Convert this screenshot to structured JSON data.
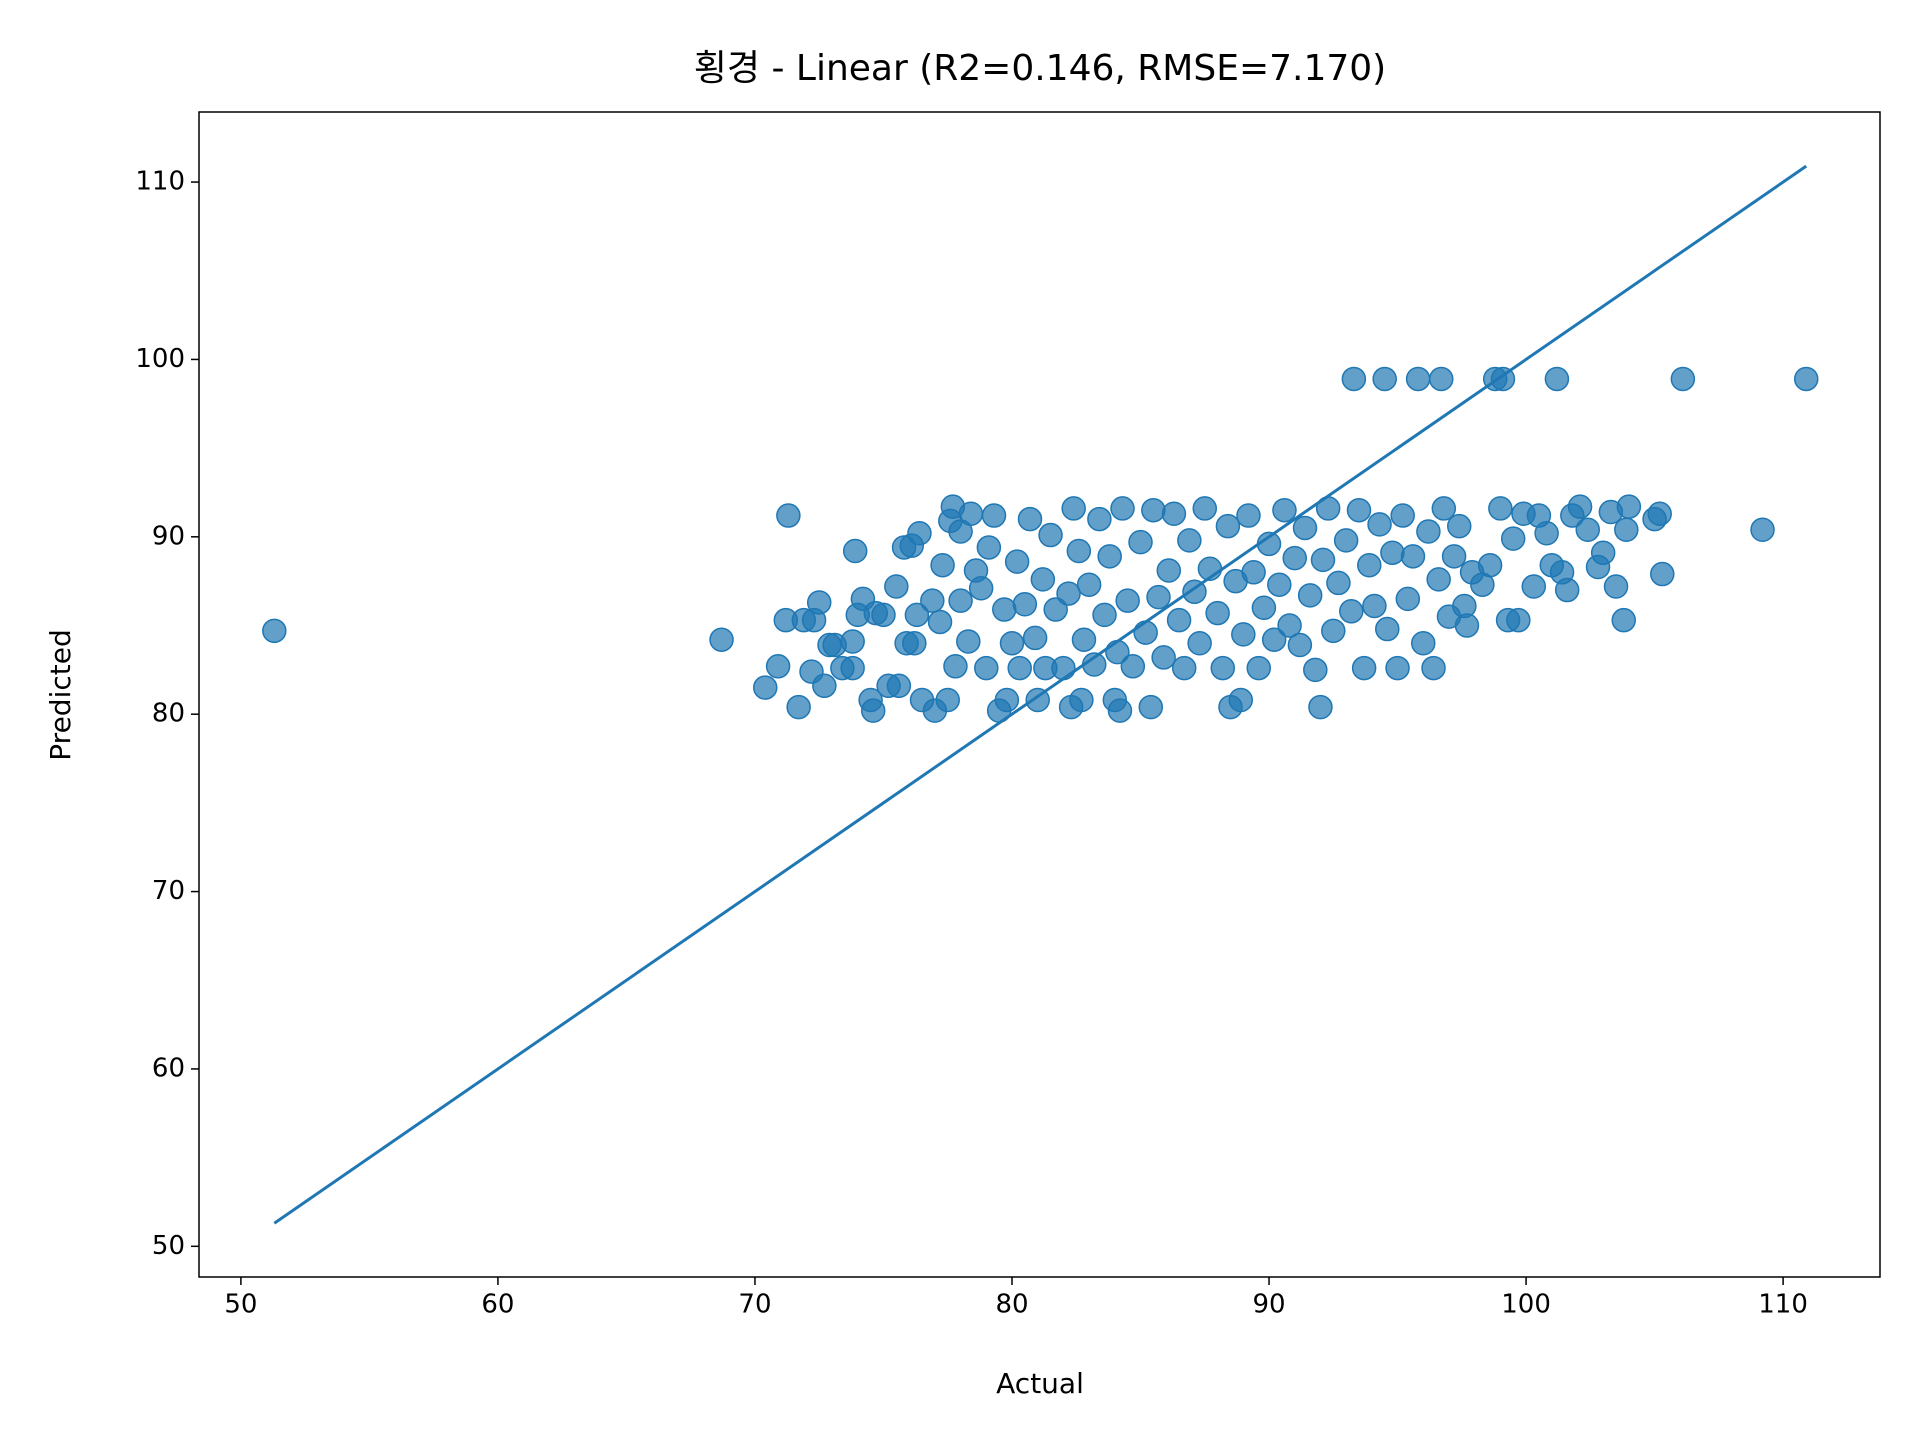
{
  "chart_data": {
    "type": "scatter",
    "title": "횡경 - Linear (R2=0.146, RMSE=7.170)",
    "xlabel": "Actual",
    "ylabel": "Predicted",
    "color": "#1f77b4",
    "x": [
      51.3,
      68.7,
      70.4,
      70.9,
      71.2,
      71.3,
      71.7,
      71.9,
      72.2,
      72.3,
      72.5,
      72.7,
      72.9,
      73.1,
      73.4,
      73.8,
      73.8,
      73.9,
      74.0,
      74.2,
      74.5,
      74.6,
      74.7,
      75.0,
      75.2,
      75.5,
      75.6,
      75.8,
      75.9,
      76.1,
      76.2,
      76.3,
      76.4,
      76.5,
      76.9,
      77.0,
      77.2,
      77.3,
      77.5,
      77.6,
      77.7,
      77.8,
      78.0,
      78.0,
      78.3,
      78.4,
      78.6,
      78.8,
      79.0,
      79.1,
      79.3,
      79.5,
      79.7,
      79.8,
      80.0,
      80.2,
      80.3,
      80.5,
      80.7,
      80.9,
      81.0,
      81.2,
      81.3,
      81.5,
      81.7,
      82.0,
      82.2,
      82.3,
      82.4,
      82.6,
      82.7,
      82.8,
      83.0,
      83.2,
      83.4,
      83.6,
      83.8,
      84.0,
      84.1,
      84.2,
      84.3,
      84.5,
      84.7,
      85.0,
      85.2,
      85.4,
      85.5,
      85.7,
      85.9,
      86.1,
      86.3,
      86.5,
      86.7,
      86.9,
      87.1,
      87.3,
      87.5,
      87.7,
      88.0,
      88.2,
      88.4,
      88.5,
      88.7,
      88.9,
      89.0,
      89.2,
      89.4,
      89.6,
      89.8,
      90.0,
      90.2,
      90.4,
      90.6,
      90.8,
      91.0,
      91.2,
      91.4,
      91.6,
      91.8,
      92.0,
      92.1,
      92.3,
      92.5,
      92.7,
      93.0,
      93.2,
      93.3,
      93.5,
      93.7,
      93.9,
      94.1,
      94.3,
      94.5,
      94.6,
      94.8,
      95.0,
      95.2,
      95.4,
      95.6,
      95.8,
      96.0,
      96.2,
      96.4,
      96.6,
      96.7,
      96.8,
      97.0,
      97.2,
      97.4,
      97.6,
      97.7,
      97.9,
      98.3,
      98.6,
      98.8,
      99.0,
      99.1,
      99.3,
      99.5,
      99.7,
      99.9,
      100.3,
      100.5,
      100.8,
      101.0,
      101.2,
      101.4,
      101.6,
      101.8,
      102.1,
      102.4,
      102.8,
      103.0,
      103.3,
      103.5,
      103.8,
      103.9,
      104.0,
      105.0,
      105.3,
      105.2,
      106.1,
      109.2,
      110.9
    ],
    "y": [
      84.7,
      84.2,
      81.5,
      82.7,
      85.3,
      91.2,
      80.4,
      85.3,
      82.4,
      85.3,
      86.3,
      81.6,
      83.9,
      83.9,
      82.6,
      82.6,
      84.1,
      89.2,
      85.6,
      86.5,
      80.8,
      80.2,
      85.7,
      85.6,
      81.6,
      87.2,
      81.6,
      89.4,
      84.0,
      89.5,
      84.0,
      85.6,
      90.2,
      80.8,
      86.4,
      80.2,
      85.2,
      88.4,
      80.8,
      90.9,
      91.7,
      82.7,
      90.3,
      86.4,
      84.1,
      91.3,
      88.1,
      87.1,
      82.6,
      89.4,
      91.2,
      80.2,
      85.9,
      80.8,
      84.0,
      88.6,
      82.6,
      86.2,
      91.0,
      84.3,
      80.8,
      87.6,
      82.6,
      90.1,
      85.9,
      82.6,
      86.8,
      80.4,
      91.6,
      89.2,
      80.8,
      84.2,
      87.3,
      82.8,
      91.0,
      85.6,
      88.9,
      80.8,
      83.5,
      80.2,
      91.6,
      86.4,
      82.7,
      89.7,
      84.6,
      80.4,
      91.5,
      86.6,
      83.2,
      88.1,
      91.3,
      85.3,
      82.6,
      89.8,
      86.9,
      84.0,
      91.6,
      88.2,
      85.7,
      82.6,
      90.6,
      80.4,
      87.5,
      80.8,
      84.5,
      91.2,
      88.0,
      82.6,
      86.0,
      89.6,
      84.2,
      87.3,
      91.5,
      85.0,
      88.8,
      83.9,
      90.5,
      86.7,
      82.5,
      80.4,
      88.7,
      91.6,
      84.7,
      87.4,
      89.8,
      85.8,
      98.9,
      91.5,
      82.6,
      88.4,
      86.1,
      90.7,
      98.9,
      84.8,
      89.1,
      82.6,
      91.2,
      86.5,
      88.9,
      98.9,
      84.0,
      90.3,
      82.6,
      87.6,
      98.9,
      91.6,
      85.5,
      88.9,
      90.6,
      86.1,
      85.0,
      88.0,
      87.3,
      88.4,
      98.9,
      91.6,
      98.9,
      85.3,
      89.9,
      85.3,
      91.3,
      87.2,
      91.2,
      90.2,
      88.4,
      98.9,
      88.0,
      87.0,
      91.2,
      91.7,
      90.4,
      88.3,
      89.1,
      91.4,
      87.2,
      85.3,
      90.4,
      91.7,
      91.0,
      87.9,
      91.3,
      98.9,
      90.4,
      98.9
    ],
    "line_x": [
      51.3,
      110.9
    ],
    "line_y": [
      51.3,
      110.9
    ],
    "xlim": [
      48.37,
      113.77
    ],
    "ylim": [
      48.27,
      113.95
    ],
    "xticks": [
      50,
      60,
      70,
      80,
      90,
      100,
      110
    ],
    "yticks": [
      50,
      60,
      70,
      80,
      90,
      100,
      110
    ]
  }
}
